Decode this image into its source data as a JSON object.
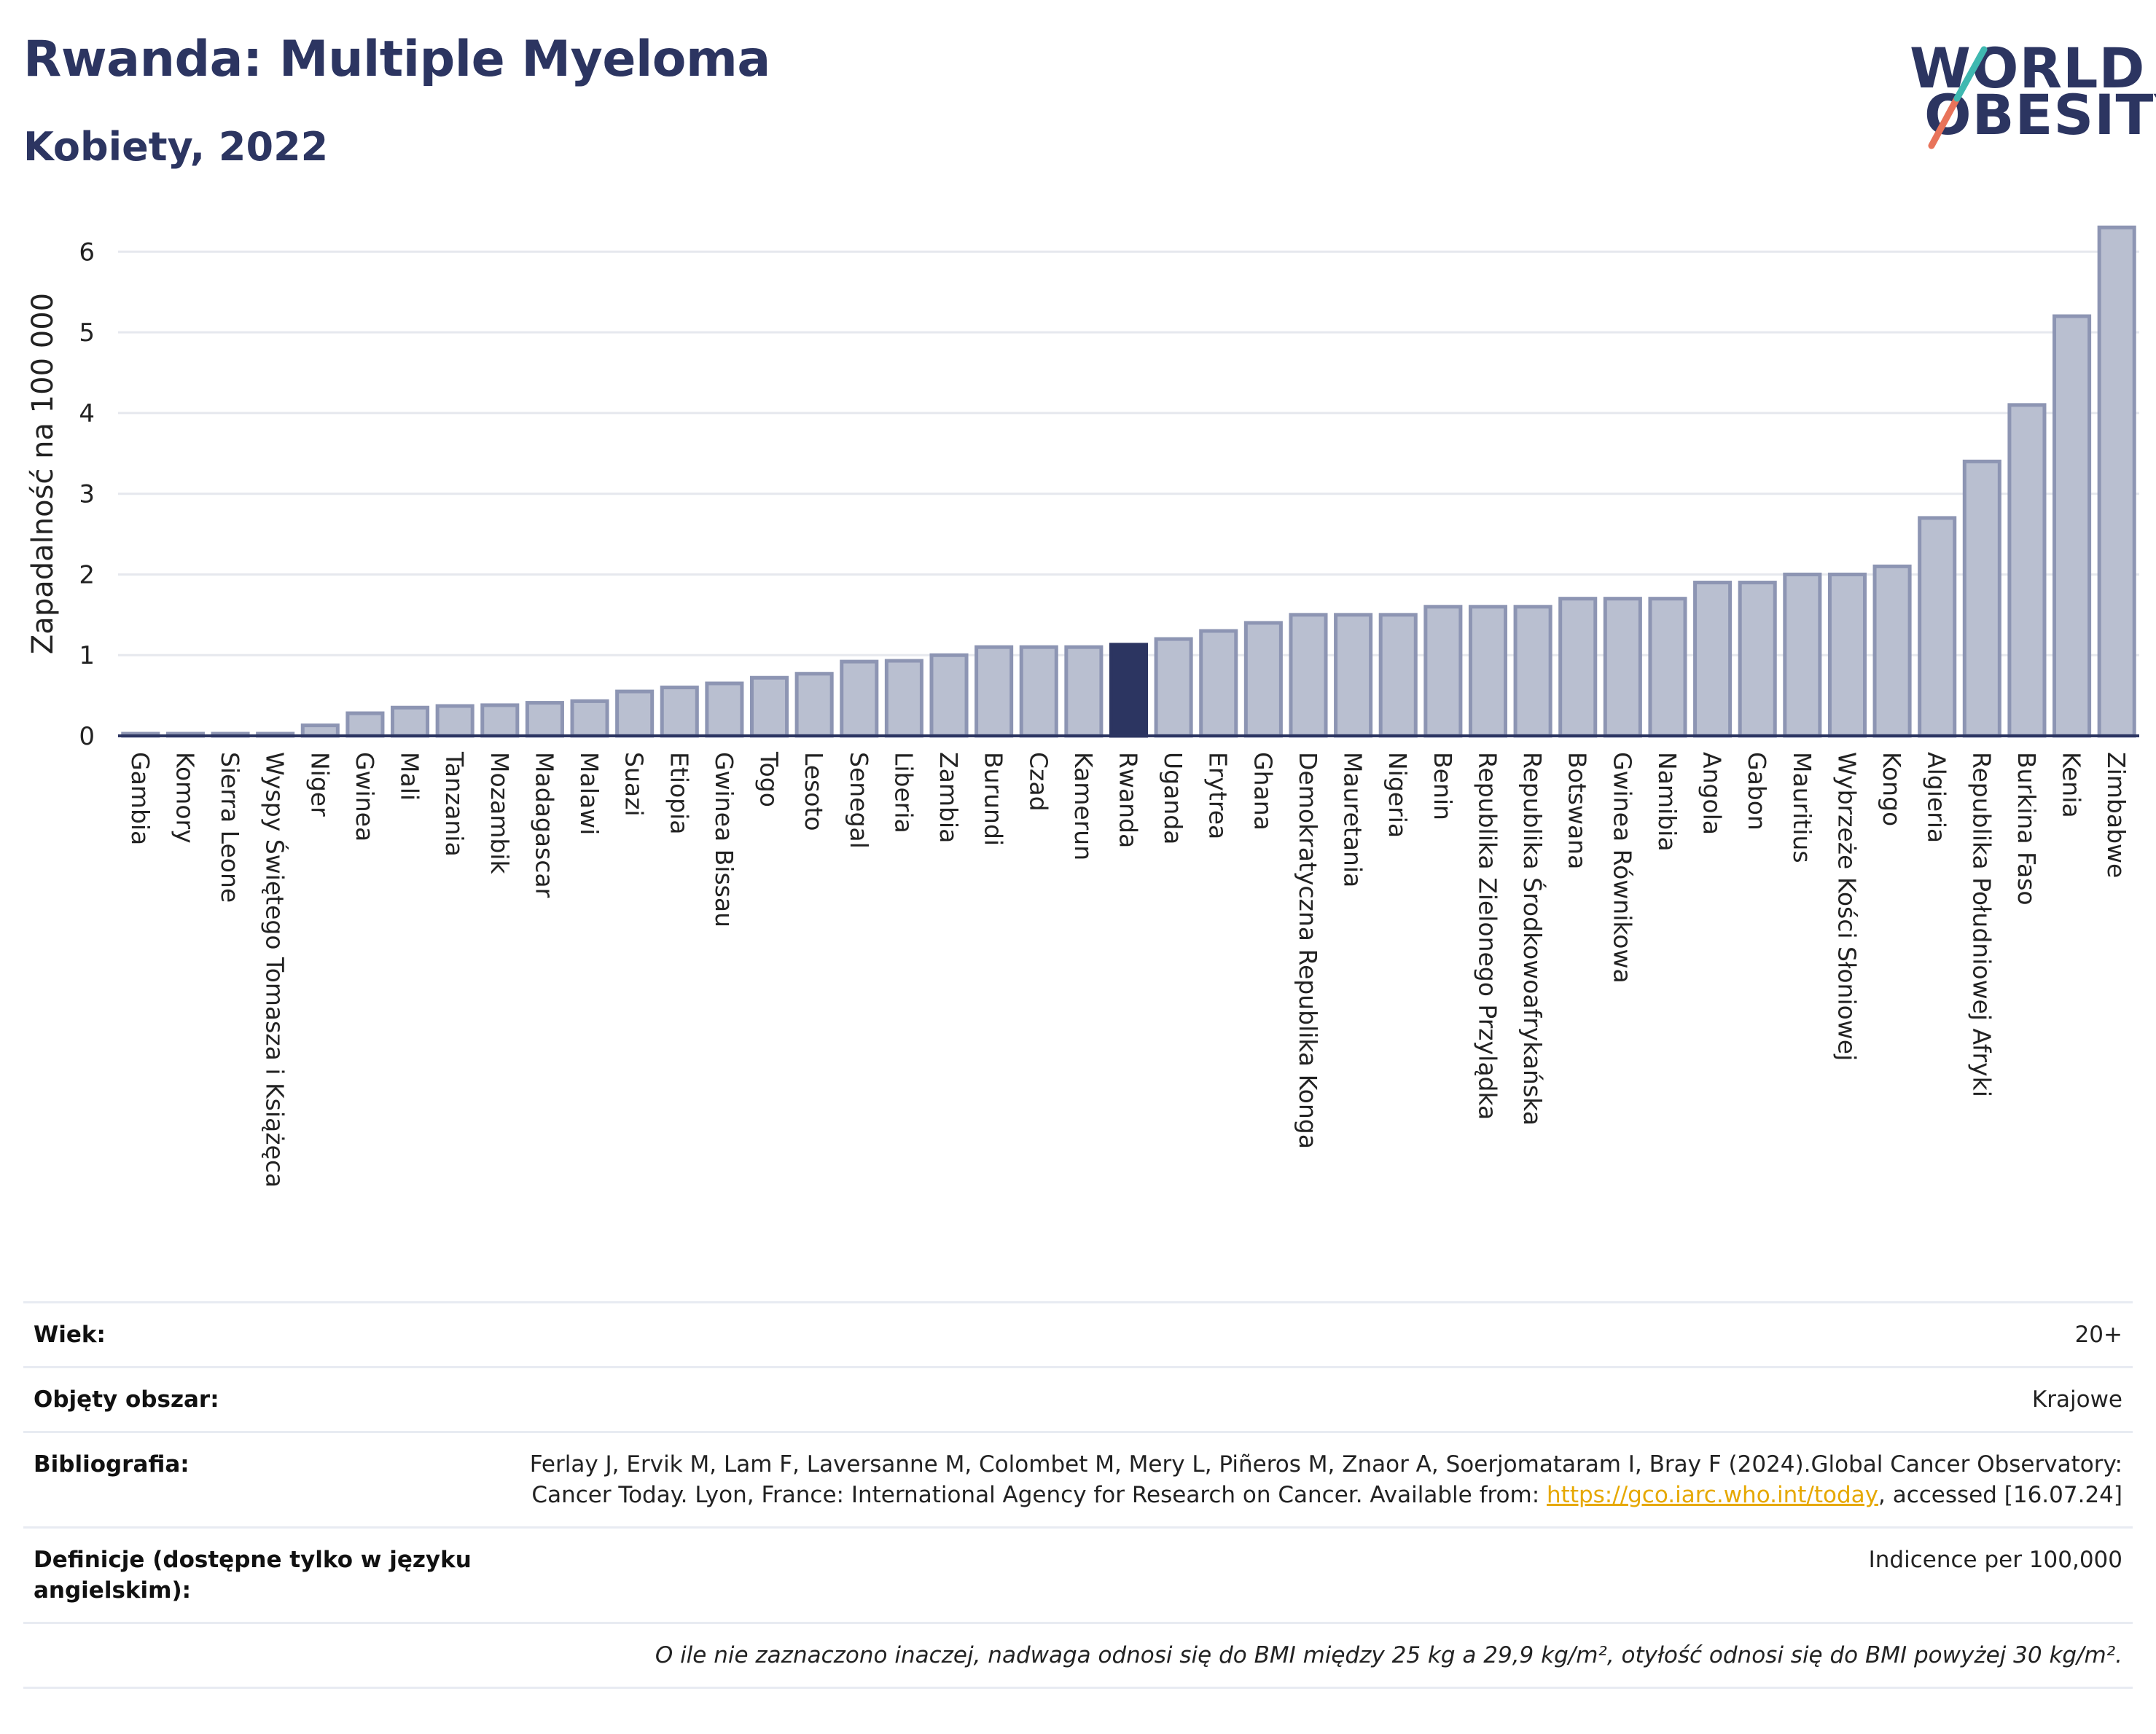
{
  "header": {
    "title": "Rwanda: Multiple Myeloma",
    "subtitle": "Kobiety, 2022",
    "logo_line1": "WORLD",
    "logo_line2": "OBESITY"
  },
  "colors": {
    "bar": "#b9bfd0",
    "bar_stroke": "#8d95b3",
    "highlight": "#2c3561",
    "grid": "#e6e8ee",
    "axis": "#2c3561"
  },
  "chart_data": {
    "type": "bar",
    "ylabel": "Zapadalność na 100 000",
    "ylim": [
      0,
      6.5
    ],
    "yticks": [
      0,
      1,
      2,
      3,
      4,
      5,
      6
    ],
    "highlight": "Rwanda",
    "categories": [
      "Gambia",
      "Komory",
      "Sierra Leone",
      "Wyspy Świętego Tomasza i Książęca",
      "Niger",
      "Gwinea",
      "Mali",
      "Tanzania",
      "Mozambik",
      "Madagascar",
      "Malawi",
      "Suazi",
      "Etiopia",
      "Gwinea Bissau",
      "Togo",
      "Lesoto",
      "Senegal",
      "Liberia",
      "Zambia",
      "Burundi",
      "Czad",
      "Kamerun",
      "Rwanda",
      "Uganda",
      "Erytrea",
      "Ghana",
      "Demokratyczna Republika Konga",
      "Mauretania",
      "Nigeria",
      "Benin",
      "Republika Zielonego Przylądka",
      "Republika Środkowoafrykańska",
      "Botswana",
      "Gwinea Równikowa",
      "Namibia",
      "Angola",
      "Gabon",
      "Mauritius",
      "Wybrzeże Kości Słoniowej",
      "Kongo",
      "Algieria",
      "Republika Południowej Afryki",
      "Burkina Faso",
      "Kenia",
      "Zimbabwe"
    ],
    "values": [
      0.02,
      0.02,
      0.02,
      0.02,
      0.13,
      0.28,
      0.35,
      0.37,
      0.38,
      0.41,
      0.43,
      0.55,
      0.6,
      0.65,
      0.72,
      0.77,
      0.92,
      0.93,
      1.0,
      1.1,
      1.1,
      1.1,
      1.13,
      1.2,
      1.3,
      1.4,
      1.5,
      1.5,
      1.5,
      1.6,
      1.6,
      1.6,
      1.7,
      1.7,
      1.7,
      1.9,
      1.9,
      2.0,
      2.0,
      2.1,
      2.7,
      3.4,
      4.1,
      5.2,
      6.3
    ]
  },
  "info": {
    "age_label": "Wiek:",
    "age_value": "20+",
    "coverage_label": "Objęty obszar:",
    "coverage_value": "Krajowe",
    "bib_label": "Bibliografia:",
    "bib_value_1": "Ferlay J, Ervik M, Lam F, Laversanne M, Colombet M, Mery L, Piñeros M, Znaor A, Soerjomataram I, Bray F (2024).Global Cancer Observatory: Cancer Today. Lyon, France: International Agency for Research on Cancer. Available from: ",
    "bib_link": "https://gco.iarc.who.int/today",
    "bib_value_2": ", accessed [16.07.24]",
    "def_label": "Definicje (dostępne tylko w języku angielskim):",
    "def_value": "Indicence per 100,000",
    "note": "O ile nie zaznaczono inaczej, nadwaga odnosi się do BMI między 25 kg a 29,9 kg/m², otyłość odnosi się do BMI powyżej 30 kg/m²."
  }
}
